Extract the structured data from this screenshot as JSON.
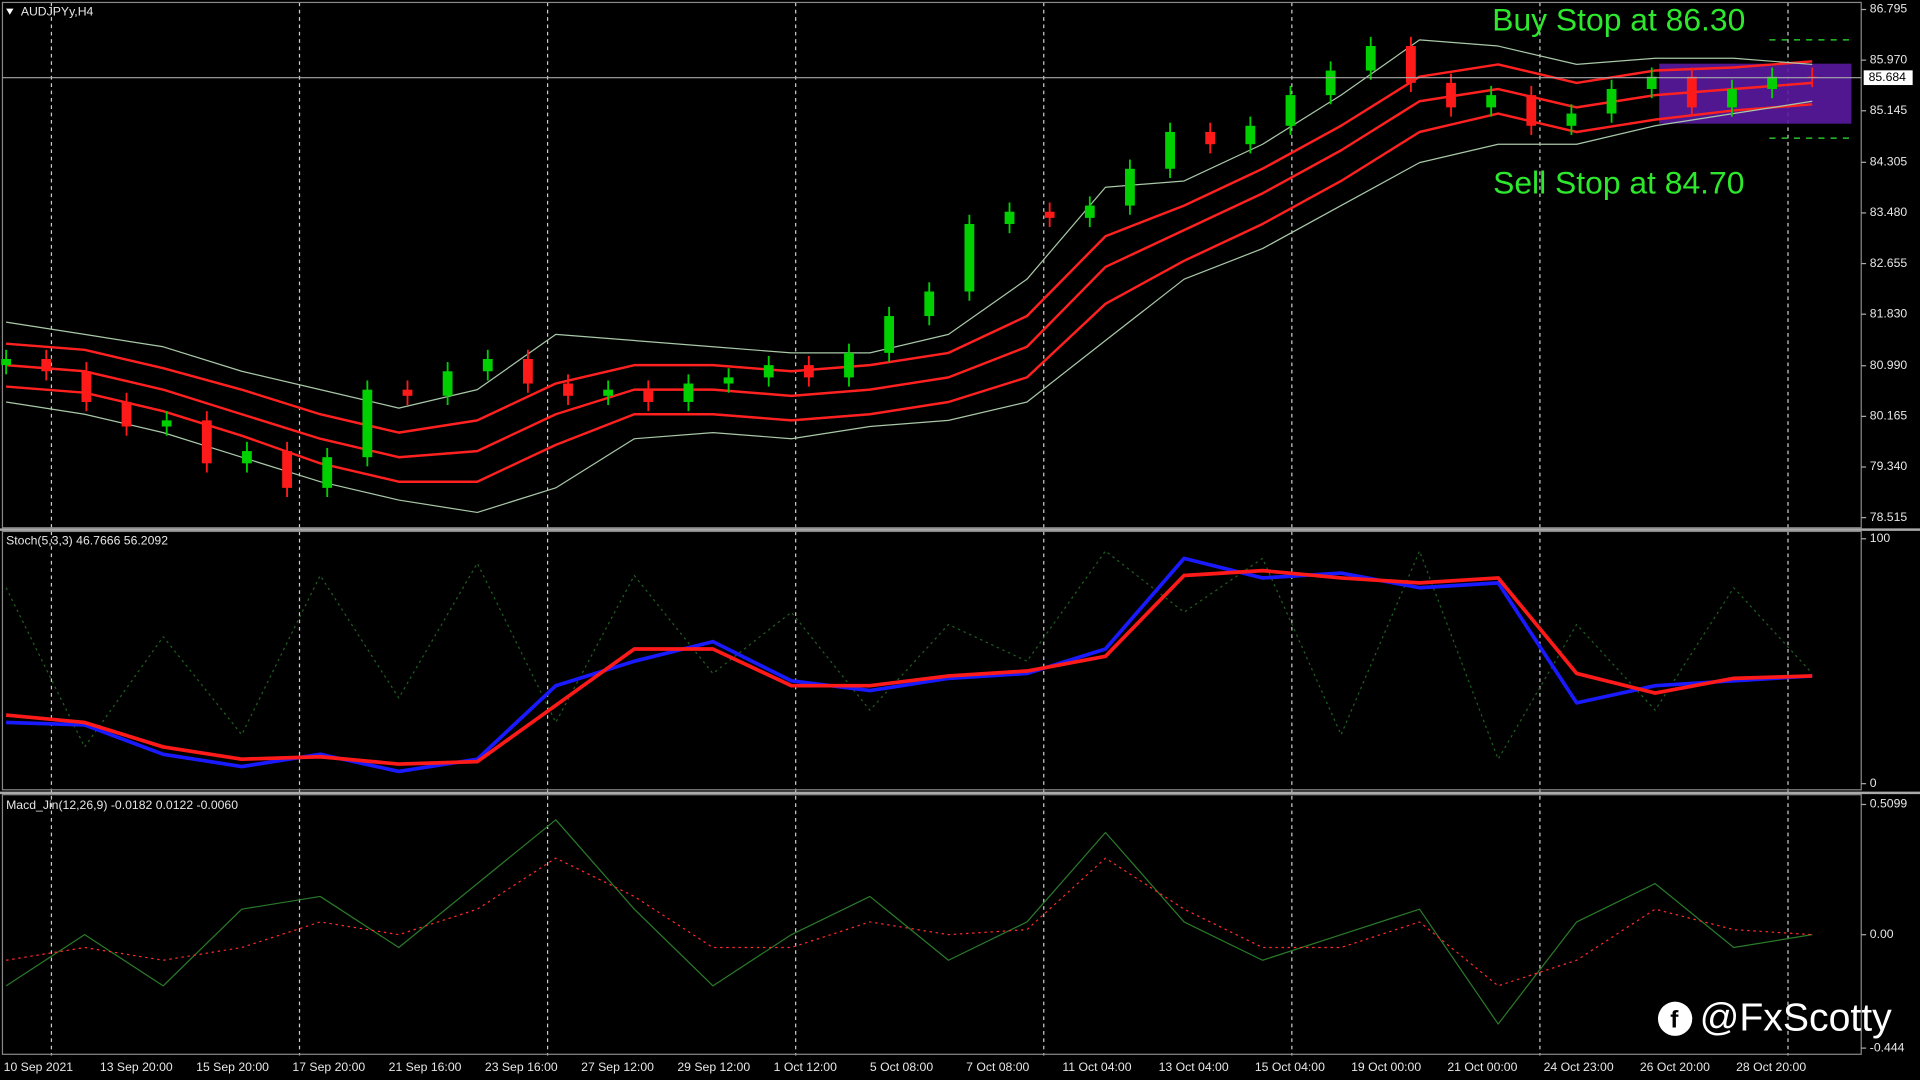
{
  "chart_data": [
    {
      "type": "candlestick",
      "title": "AUDJPYy,H4",
      "bull_color": "#00d000",
      "bear_color": "#ff1a1a",
      "candles": [
        [
          81.0,
          81.25,
          80.85,
          81.1
        ],
        [
          81.1,
          81.25,
          80.75,
          80.9
        ],
        [
          80.9,
          81.05,
          80.25,
          80.4
        ],
        [
          80.4,
          80.55,
          79.85,
          80.0
        ],
        [
          80.0,
          80.25,
          79.85,
          80.1
        ],
        [
          80.1,
          80.25,
          79.25,
          79.4
        ],
        [
          79.4,
          79.75,
          79.25,
          79.6
        ],
        [
          79.6,
          79.75,
          78.85,
          79.0
        ],
        [
          79.0,
          79.65,
          78.85,
          79.5
        ],
        [
          79.5,
          80.75,
          79.35,
          80.6
        ],
        [
          80.6,
          80.75,
          80.35,
          80.5
        ],
        [
          80.5,
          81.05,
          80.35,
          80.9
        ],
        [
          80.9,
          81.25,
          80.75,
          81.1
        ],
        [
          81.1,
          81.25,
          80.55,
          80.7
        ],
        [
          80.7,
          80.85,
          80.35,
          80.5
        ],
        [
          80.5,
          80.75,
          80.35,
          80.6
        ],
        [
          80.6,
          80.75,
          80.25,
          80.4
        ],
        [
          80.4,
          80.85,
          80.25,
          80.7
        ],
        [
          80.7,
          80.95,
          80.55,
          80.8
        ],
        [
          80.8,
          81.15,
          80.65,
          81.0
        ],
        [
          81.0,
          81.15,
          80.65,
          80.8
        ],
        [
          80.8,
          81.35,
          80.65,
          81.2
        ],
        [
          81.2,
          81.95,
          81.05,
          81.8
        ],
        [
          81.8,
          82.35,
          81.65,
          82.2
        ],
        [
          82.2,
          83.45,
          82.05,
          83.3
        ],
        [
          83.3,
          83.65,
          83.15,
          83.5
        ],
        [
          83.5,
          83.65,
          83.25,
          83.4
        ],
        [
          83.4,
          83.75,
          83.25,
          83.6
        ],
        [
          83.6,
          84.35,
          83.45,
          84.2
        ],
        [
          84.2,
          84.95,
          84.05,
          84.8
        ],
        [
          84.8,
          84.95,
          84.45,
          84.6
        ],
        [
          84.6,
          85.05,
          84.45,
          84.9
        ],
        [
          84.9,
          85.55,
          84.75,
          85.4
        ],
        [
          85.4,
          85.95,
          85.25,
          85.8
        ],
        [
          85.8,
          86.35,
          85.65,
          86.2
        ],
        [
          86.2,
          86.35,
          85.45,
          85.6
        ],
        [
          85.6,
          85.75,
          85.05,
          85.2
        ],
        [
          85.2,
          85.55,
          85.05,
          85.4
        ],
        [
          85.4,
          85.55,
          84.75,
          84.9
        ],
        [
          84.9,
          85.25,
          84.75,
          85.1
        ],
        [
          85.1,
          85.65,
          84.95,
          85.5
        ],
        [
          85.5,
          85.85,
          85.35,
          85.7
        ],
        [
          85.7,
          85.85,
          85.05,
          85.2
        ],
        [
          85.2,
          85.65,
          85.05,
          85.5
        ],
        [
          85.5,
          85.85,
          85.35,
          85.7
        ],
        [
          85.7,
          85.85,
          85.53,
          85.68
        ]
      ],
      "series": [
        {
          "color": "#ff2020",
          "width": 2,
          "values": [
            81.35,
            81.25,
            80.95,
            80.6,
            80.2,
            79.9,
            80.1,
            80.7,
            81.0,
            81.0,
            80.9,
            81.0,
            81.2,
            81.8,
            83.1,
            83.6,
            84.2,
            84.9,
            85.7,
            85.9,
            85.6,
            85.8,
            85.85,
            85.95
          ]
        },
        {
          "color": "#ff2020",
          "width": 2,
          "values": [
            81.0,
            80.9,
            80.6,
            80.2,
            79.8,
            79.5,
            79.6,
            80.2,
            80.6,
            80.6,
            80.5,
            80.6,
            80.8,
            81.3,
            82.6,
            83.2,
            83.8,
            84.5,
            85.3,
            85.5,
            85.2,
            85.4,
            85.5,
            85.6
          ]
        },
        {
          "color": "#ff2020",
          "width": 2,
          "values": [
            80.65,
            80.55,
            80.25,
            79.85,
            79.4,
            79.1,
            79.1,
            79.7,
            80.2,
            80.2,
            80.1,
            80.2,
            80.4,
            80.8,
            82.0,
            82.7,
            83.3,
            84.0,
            84.8,
            85.1,
            84.8,
            85.0,
            85.15,
            85.25
          ]
        },
        {
          "color": "#a8c8a8",
          "width": 1,
          "values": [
            81.7,
            81.5,
            81.3,
            80.9,
            80.6,
            80.3,
            80.6,
            81.5,
            81.4,
            81.3,
            81.2,
            81.2,
            81.5,
            82.4,
            83.9,
            84.0,
            84.6,
            85.4,
            86.3,
            86.2,
            85.9,
            86.0,
            86.0,
            85.9
          ]
        },
        {
          "color": "#a8c8a8",
          "width": 1,
          "values": [
            80.4,
            80.2,
            79.9,
            79.5,
            79.1,
            78.8,
            78.6,
            79.0,
            79.8,
            79.9,
            79.8,
            80.0,
            80.1,
            80.4,
            81.4,
            82.4,
            82.9,
            83.6,
            84.3,
            84.6,
            84.6,
            84.9,
            85.1,
            85.3
          ]
        }
      ],
      "ylim": [
        78.37,
        86.95
      ],
      "yticks": [
        86.795,
        {
          "value": 85.97,
          "label": "85.970"
        },
        85.145,
        84.305,
        {
          "value": 83.48,
          "label": "83.480"
        },
        82.655,
        {
          "value": 81.83,
          "label": "81.830"
        },
        {
          "value": 80.99,
          "label": "80.990"
        },
        80.165,
        {
          "value": 79.34,
          "label": "79.340"
        },
        78.515
      ],
      "current_price": 85.684,
      "annotations": [
        {
          "text": "Buy Stop at 86.30",
          "level": 86.3
        },
        {
          "text": "Sell Stop at 84.70",
          "level": 84.7
        }
      ]
    },
    {
      "type": "line",
      "title": "Stoch(5,3,3) 46.7666 56.2092",
      "series": [
        {
          "color": "#1f5f1f",
          "width": 1,
          "dash": true,
          "values": [
            80,
            15,
            60,
            20,
            85,
            35,
            90,
            25,
            85,
            45,
            70,
            30,
            65,
            50,
            95,
            70,
            92,
            20,
            95,
            10,
            65,
            30,
            80,
            45
          ]
        },
        {
          "color": "#1a1aff",
          "width": 3,
          "values": [
            25,
            24,
            12,
            7,
            12,
            5,
            10,
            40,
            50,
            58,
            42,
            38,
            43,
            45,
            55,
            92,
            84,
            86,
            80,
            82,
            33,
            40,
            42,
            44
          ]
        },
        {
          "color": "#ff1a1a",
          "width": 3,
          "values": [
            28,
            25,
            15,
            10,
            11,
            8,
            9,
            32,
            55,
            55,
            40,
            40,
            44,
            46,
            52,
            85,
            87,
            84,
            82,
            84,
            45,
            37,
            43,
            44
          ]
        }
      ],
      "ylim": [
        -3,
        103.5
      ],
      "yticks": [
        0,
        100
      ]
    },
    {
      "type": "line",
      "title": "Macd_Jin(12,26,9) -0.0182 0.0122 -0.0060",
      "series": [
        {
          "color": "#2a7a2a",
          "width": 1,
          "values": [
            -0.2,
            0.0,
            -0.2,
            0.1,
            0.15,
            -0.05,
            0.2,
            0.45,
            0.1,
            -0.2,
            0.0,
            0.15,
            -0.1,
            0.05,
            0.4,
            0.05,
            -0.1,
            0.0,
            0.1,
            -0.35,
            0.05,
            0.2,
            -0.05,
            0.0
          ]
        },
        {
          "color": "#ff2a2a",
          "width": 1,
          "dash": true,
          "values": [
            -0.1,
            -0.05,
            -0.1,
            -0.05,
            0.05,
            0.0,
            0.1,
            0.3,
            0.15,
            -0.05,
            -0.05,
            0.05,
            0.0,
            0.02,
            0.3,
            0.1,
            -0.05,
            -0.05,
            0.05,
            -0.2,
            -0.1,
            0.1,
            0.02,
            0.0
          ]
        }
      ],
      "ylim": [
        -0.473,
        0.553
      ],
      "yticks": [
        0.5099,
        {
          "value": 0,
          "label": "0.00"
        },
        -0.444
      ],
      "date_labels": [
        "10 Sep 2021",
        "13 Sep 20:00",
        "15 Sep 20:00",
        "17 Sep 20:00",
        "21 Sep 16:00",
        "23 Sep 16:00",
        "27 Sep 12:00",
        "29 Sep 12:00",
        "1 Oct 12:00",
        "5 Oct 08:00",
        "7 Oct 08:00",
        "11 Oct 04:00",
        "13 Oct 04:00",
        "15 Oct 04:00",
        "19 Oct 00:00",
        "21 Oct 00:00",
        "24 Oct 23:00",
        "26 Oct 20:00",
        "28 Oct 20:00"
      ]
    }
  ],
  "watermark": "@FxScotty"
}
